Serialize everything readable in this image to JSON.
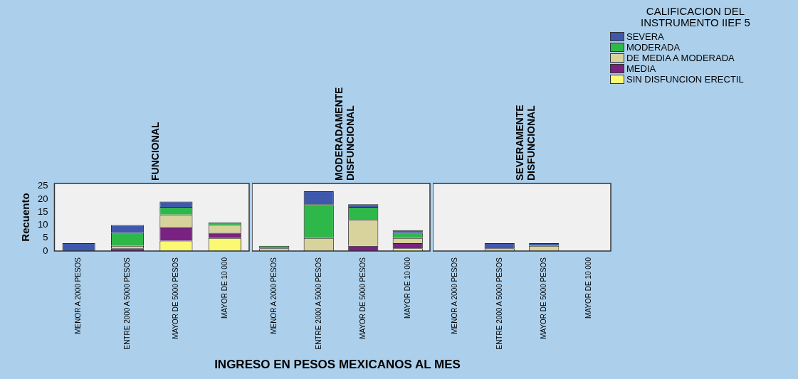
{
  "chart_data": [
    {
      "type": "bar",
      "title": "FUNCIONAL",
      "ylabel": "Recuento",
      "categories": [
        "MENOR A 2000 PESOS",
        "ENTRE 2000 A 5000 PESOS",
        "MAYOR DE 5000 PESOS",
        "MAYOR DE 10 000"
      ],
      "stacked": true,
      "ylim": [
        0,
        26
      ],
      "yticks": [
        0,
        5,
        10,
        15,
        20,
        25
      ],
      "grid": false,
      "series": [
        {
          "color": "#fbf873",
          "values": [
            0,
            0,
            4,
            5
          ]
        },
        {
          "color": "#7a2281",
          "values": [
            0,
            1,
            5,
            2
          ]
        },
        {
          "color": "#d8d29c",
          "values": [
            0,
            1,
            5,
            3
          ]
        },
        {
          "color": "#2fb84a",
          "values": [
            0,
            5,
            3,
            1
          ]
        },
        {
          "color": "#3e58ac",
          "values": [
            3,
            3,
            2,
            0
          ]
        }
      ]
    },
    {
      "type": "bar",
      "title": "MODERADAMENTE DISFUNCIONAL",
      "xlabel": "INGRESO EN PESOS MEXICANOS AL MES",
      "categories": [
        "MENOR A 2000 PESOS",
        "ENTRE 2000 A 5000 PESOS",
        "MAYOR DE 5000 PESOS",
        "MAYOR DE 10 000"
      ],
      "stacked": true,
      "ylim": [
        0,
        26
      ],
      "yticks": [
        0,
        5,
        10,
        15,
        20,
        25
      ],
      "tick_labels": "x",
      "grid": false,
      "series": [
        {
          "color": "#fbf873",
          "values": [
            0,
            0,
            0,
            1
          ]
        },
        {
          "color": "#7a2281",
          "values": [
            0,
            0,
            2,
            2
          ]
        },
        {
          "color": "#d8d29c",
          "values": [
            1,
            5,
            10,
            2
          ]
        },
        {
          "color": "#2fb84a",
          "values": [
            1,
            13,
            5,
            2
          ]
        },
        {
          "color": "#3e58ac",
          "values": [
            0,
            5,
            1,
            1
          ]
        }
      ]
    },
    {
      "type": "bar",
      "title": "SEVERAMENTE DISFUNCIONAL",
      "legend_title": "CALIFICACION DEL INSTRUMENTO IIEF 5",
      "legend": "top right",
      "categories": [
        "MENOR A 2000 PESOS",
        "ENTRE 2000 A 5000 PESOS",
        "MAYOR DE 5000 PESOS",
        "MAYOR DE 10 000"
      ],
      "stacked": true,
      "ylim": [
        0,
        26
      ],
      "yticks": [
        0,
        5,
        10,
        15,
        20,
        25
      ],
      "tick_labels": "x",
      "grid": false,
      "series": [
        {
          "name": "SIN DISFUNCION ERECTIL",
          "color": "#fbf873",
          "values": [
            0,
            0,
            0,
            0
          ]
        },
        {
          "name": "MEDIA",
          "color": "#7a2281",
          "values": [
            0,
            0,
            0,
            0
          ]
        },
        {
          "name": "DE MEDIA A MODERADA",
          "color": "#d8d29c",
          "values": [
            0,
            1,
            2,
            0
          ]
        },
        {
          "name": "MODERADA",
          "color": "#2fb84a",
          "values": [
            0,
            0,
            0,
            0
          ]
        },
        {
          "name": "SEVERA",
          "color": "#3e58ac",
          "values": [
            0,
            2,
            1,
            0
          ]
        }
      ]
    }
  ]
}
